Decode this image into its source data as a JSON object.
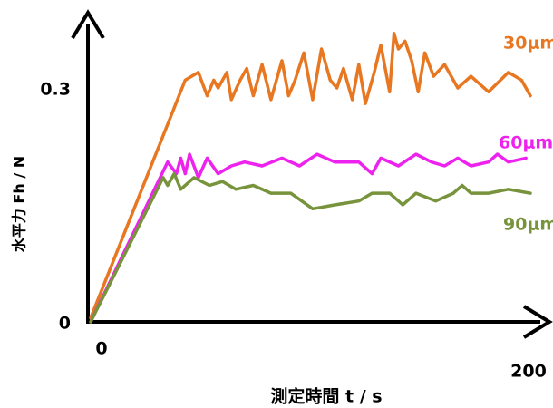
{
  "chart_data": {
    "type": "line",
    "xlabel": "測定時間 t / s",
    "ylabel": "水平力 Fh / N",
    "xlim": [
      0,
      200
    ],
    "xticks": [
      0,
      200
    ],
    "ylim": [
      0,
      0.4
    ],
    "yticks": [
      0,
      0.3
    ],
    "grid": false,
    "series": [
      {
        "name": "30μm",
        "color": "#e87722",
        "x": [
          0,
          43,
          49,
          53,
          56,
          58,
          62,
          64,
          68,
          71,
          74,
          78,
          82,
          87,
          90,
          93,
          97,
          101,
          105,
          109,
          112,
          115,
          119,
          122,
          125,
          129,
          132,
          136,
          138,
          140,
          143,
          146,
          149,
          152,
          156,
          161,
          167,
          173,
          181,
          190,
          196,
          200
        ],
        "values": [
          0.005,
          0.31,
          0.32,
          0.29,
          0.31,
          0.3,
          0.32,
          0.285,
          0.31,
          0.325,
          0.29,
          0.33,
          0.285,
          0.335,
          0.29,
          0.31,
          0.345,
          0.285,
          0.35,
          0.31,
          0.3,
          0.325,
          0.285,
          0.33,
          0.28,
          0.32,
          0.355,
          0.295,
          0.37,
          0.35,
          0.36,
          0.335,
          0.295,
          0.345,
          0.315,
          0.33,
          0.3,
          0.315,
          0.295,
          0.32,
          0.31,
          0.29
        ]
      },
      {
        "name": "60μm",
        "color": "#ee22ee",
        "x": [
          0,
          35,
          39,
          41,
          43,
          45,
          49,
          53,
          58,
          64,
          70,
          78,
          87,
          95,
          103,
          111,
          122,
          128,
          132,
          140,
          148,
          155,
          161,
          167,
          173,
          181,
          185,
          190,
          198
        ],
        "values": [
          0,
          0.205,
          0.19,
          0.21,
          0.19,
          0.215,
          0.185,
          0.21,
          0.19,
          0.2,
          0.205,
          0.2,
          0.21,
          0.2,
          0.215,
          0.205,
          0.205,
          0.19,
          0.21,
          0.2,
          0.215,
          0.205,
          0.2,
          0.21,
          0.2,
          0.205,
          0.215,
          0.205,
          0.21
        ]
      },
      {
        "name": "90μm",
        "color": "#77933c",
        "x": [
          0,
          33,
          35,
          38,
          41,
          47,
          54,
          60,
          66,
          74,
          82,
          91,
          101,
          111,
          122,
          128,
          136,
          142,
          148,
          157,
          165,
          169,
          173,
          181,
          190,
          200
        ],
        "values": [
          0,
          0.185,
          0.175,
          0.19,
          0.17,
          0.185,
          0.175,
          0.18,
          0.17,
          0.175,
          0.165,
          0.165,
          0.145,
          0.15,
          0.155,
          0.165,
          0.165,
          0.15,
          0.165,
          0.155,
          0.165,
          0.175,
          0.165,
          0.165,
          0.17,
          0.165
        ]
      }
    ]
  }
}
